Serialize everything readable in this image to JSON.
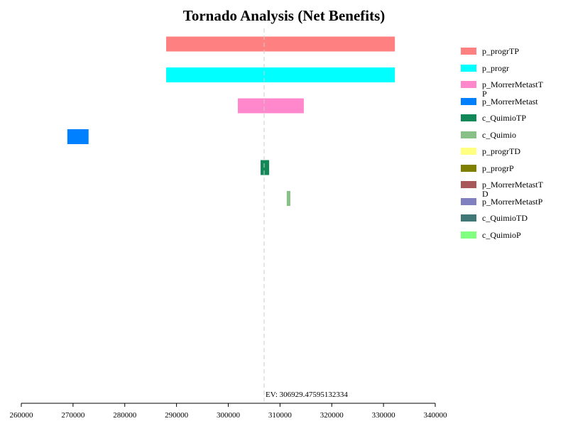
{
  "chart_data": {
    "type": "tornado",
    "title": "Tornado Analysis (Net Benefits)",
    "ev": 306929.47595132334,
    "ev_label": "EV: 306929.47595132334",
    "xlim": [
      260000,
      340000
    ],
    "xticks": [
      260000,
      270000,
      280000,
      290000,
      300000,
      310000,
      320000,
      330000,
      340000
    ],
    "series": [
      {
        "name": "p_progrTP",
        "color": "#ff8080",
        "low": 288000,
        "high": 332200
      },
      {
        "name": "p_progr",
        "color": "#00ffff",
        "low": 288000,
        "high": 332200
      },
      {
        "name": "p_MorrerMetastTP",
        "color": "#ff88cc",
        "low": 301850,
        "high": 314600
      },
      {
        "name": "p_MorrerMetast",
        "color": "#0080ff",
        "low": 268900,
        "high": 273000
      },
      {
        "name": "c_QuimioTP",
        "color": "#108858",
        "low": 306250,
        "high": 307900
      },
      {
        "name": "c_Quimio",
        "color": "#88c088",
        "low": 311300,
        "high": 312000
      },
      {
        "name": "p_progrTD",
        "color": "#ffff80",
        "low": 306929,
        "high": 306929
      },
      {
        "name": "p_progrP",
        "color": "#808000",
        "low": 306929,
        "high": 306929
      },
      {
        "name": "p_MorrerMetastTD",
        "color": "#a85858",
        "low": 306929,
        "high": 306929
      },
      {
        "name": "p_MorrerMetastP",
        "color": "#8080c0",
        "low": 306929,
        "high": 306929
      },
      {
        "name": "c_QuimioTD",
        "color": "#407878",
        "low": 306929,
        "high": 306929
      },
      {
        "name": "c_QuimioP",
        "color": "#80ff80",
        "low": 306929,
        "high": 306929
      }
    ]
  }
}
